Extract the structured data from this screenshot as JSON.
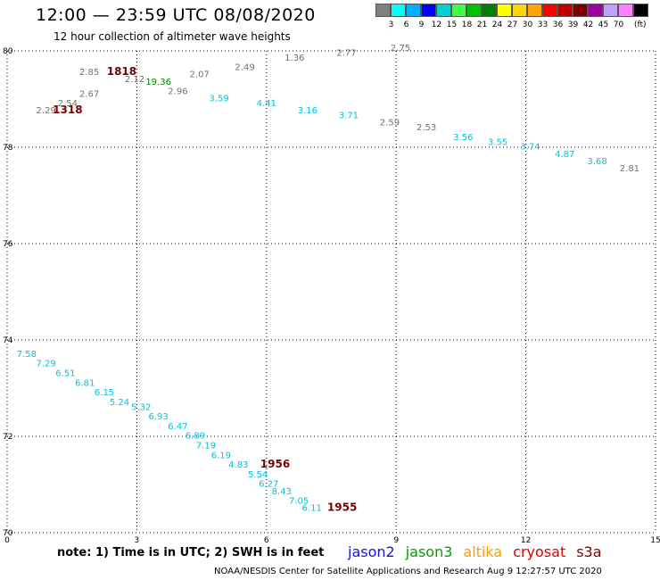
{
  "title": "12:00 — 23:59 UTC 08/08/2020",
  "subtitle": "12 hour collection of altimeter wave heights",
  "note": "note:  1) Time is in UTC;  2) SWH is in feet",
  "credit": "NOAA/NESDIS Center for Satellite Applications and Research    Aug  9 12:27:57 UTC 2020",
  "satellites": [
    {
      "name": "jason2",
      "color": "#1414dc"
    },
    {
      "name": "jason3",
      "color": "#00a000"
    },
    {
      "name": "altika",
      "color": "#ff9900"
    },
    {
      "name": "cryosat",
      "color": "#e00000"
    },
    {
      "name": "s3a",
      "color": "#7a0000"
    }
  ],
  "color_scale": {
    "unit": "(ft)",
    "colors": [
      "#808080",
      "#00ffff",
      "#00b0ff",
      "#0000ff",
      "#00d0d0",
      "#40ff40",
      "#00c000",
      "#008000",
      "#ffff00",
      "#ffd700",
      "#ffa500",
      "#ff0000",
      "#c00000",
      "#800000",
      "#a000a0",
      "#c0a0ff",
      "#ff80ff",
      "#000000"
    ],
    "labels": [
      "3",
      "6",
      "9",
      "12",
      "15",
      "18",
      "21",
      "24",
      "27",
      "30",
      "33",
      "36",
      "39",
      "42",
      "45",
      "70"
    ]
  },
  "chart_data": {
    "type": "scatter",
    "title": "12:00 — 23:59 UTC 08/08/2020",
    "xlim": [
      0,
      15
    ],
    "ylim": [
      70,
      80
    ],
    "x_ticks": [
      "0",
      "3",
      "6",
      "9",
      "12",
      "15"
    ],
    "y_ticks": [
      "70",
      "72",
      "74",
      "76",
      "78",
      "80"
    ],
    "grid": true,
    "points": [
      {
        "x": 0.9,
        "y": 78.7,
        "label": "2.29",
        "color": "#707070",
        "big": false
      },
      {
        "x": 1.4,
        "y": 78.7,
        "label": "1318",
        "color": "#7a0000",
        "big": true
      },
      {
        "x": 1.4,
        "y": 78.85,
        "label": "2.54",
        "color": "#707070",
        "big": false
      },
      {
        "x": 1.9,
        "y": 79.05,
        "label": "2.67",
        "color": "#707070",
        "big": false
      },
      {
        "x": 1.9,
        "y": 79.5,
        "label": "2.85",
        "color": "#707070",
        "big": false
      },
      {
        "x": 2.65,
        "y": 79.5,
        "label": "1818",
        "color": "#7a0000",
        "big": true
      },
      {
        "x": 2.95,
        "y": 79.35,
        "label": "2.12",
        "color": "#707070",
        "big": false
      },
      {
        "x": 3.5,
        "y": 79.3,
        "label": "19.36",
        "color": "#008000",
        "big": false
      },
      {
        "x": 3.95,
        "y": 79.1,
        "label": "2.96",
        "color": "#707070",
        "big": false
      },
      {
        "x": 4.45,
        "y": 79.45,
        "label": "2.07",
        "color": "#707070",
        "big": false
      },
      {
        "x": 4.9,
        "y": 78.95,
        "label": "3.59",
        "color": "#00c0e0",
        "big": false
      },
      {
        "x": 5.5,
        "y": 79.6,
        "label": "2.49",
        "color": "#707070",
        "big": false
      },
      {
        "x": 6.0,
        "y": 78.85,
        "label": "4.41",
        "color": "#00c0e0",
        "big": false
      },
      {
        "x": 6.65,
        "y": 79.8,
        "label": "1.36",
        "color": "#707070",
        "big": false
      },
      {
        "x": 6.95,
        "y": 78.7,
        "label": "3.16",
        "color": "#00c0e0",
        "big": false
      },
      {
        "x": 7.85,
        "y": 79.9,
        "label": "2.77",
        "color": "#707070",
        "big": false
      },
      {
        "x": 7.9,
        "y": 78.6,
        "label": "3.71",
        "color": "#00c0e0",
        "big": false
      },
      {
        "x": 8.85,
        "y": 78.45,
        "label": "2.59",
        "color": "#707070",
        "big": false
      },
      {
        "x": 9.1,
        "y": 80.0,
        "label": "2.75",
        "color": "#707070",
        "big": false
      },
      {
        "x": 9.7,
        "y": 78.35,
        "label": "2.53",
        "color": "#707070",
        "big": false
      },
      {
        "x": 10.55,
        "y": 78.15,
        "label": "3.56",
        "color": "#00c0e0",
        "big": false
      },
      {
        "x": 11.35,
        "y": 78.05,
        "label": "3.55",
        "color": "#00c0e0",
        "big": false
      },
      {
        "x": 12.1,
        "y": 77.95,
        "label": "3.74",
        "color": "#00c0e0",
        "big": false
      },
      {
        "x": 12.9,
        "y": 77.8,
        "label": "4.87",
        "color": "#00c0e0",
        "big": false
      },
      {
        "x": 13.65,
        "y": 77.65,
        "label": "3.68",
        "color": "#00c0e0",
        "big": false
      },
      {
        "x": 14.4,
        "y": 77.5,
        "label": "2.81",
        "color": "#707070",
        "big": false
      },
      {
        "x": 0.45,
        "y": 73.65,
        "label": "7.58",
        "color": "#00c0e0",
        "big": false
      },
      {
        "x": 0.9,
        "y": 73.45,
        "label": "7.29",
        "color": "#00c0e0",
        "big": false
      },
      {
        "x": 1.35,
        "y": 73.25,
        "label": "6.51",
        "color": "#00c0e0",
        "big": false
      },
      {
        "x": 1.8,
        "y": 73.05,
        "label": "6.81",
        "color": "#00c0e0",
        "big": false
      },
      {
        "x": 2.25,
        "y": 72.85,
        "label": "6.15",
        "color": "#00c0e0",
        "big": false
      },
      {
        "x": 2.6,
        "y": 72.65,
        "label": "5.24",
        "color": "#00c0e0",
        "big": false
      },
      {
        "x": 3.1,
        "y": 72.55,
        "label": "5.32",
        "color": "#00c0e0",
        "big": false
      },
      {
        "x": 3.5,
        "y": 72.35,
        "label": "6.93",
        "color": "#00c0e0",
        "big": false
      },
      {
        "x": 3.95,
        "y": 72.15,
        "label": "6.47",
        "color": "#00c0e0",
        "big": false
      },
      {
        "x": 4.35,
        "y": 71.95,
        "label": "6.89",
        "color": "#00c0e0",
        "big": false
      },
      {
        "x": 4.6,
        "y": 71.75,
        "label": "7.19",
        "color": "#00c0e0",
        "big": false
      },
      {
        "x": 4.95,
        "y": 71.55,
        "label": "6.19",
        "color": "#00c0e0",
        "big": false
      },
      {
        "x": 5.35,
        "y": 71.35,
        "label": "4.83",
        "color": "#00c0e0",
        "big": false
      },
      {
        "x": 6.2,
        "y": 71.35,
        "label": "1956",
        "color": "#7a0000",
        "big": true
      },
      {
        "x": 5.8,
        "y": 71.15,
        "label": "5.54",
        "color": "#00c0e0",
        "big": false
      },
      {
        "x": 6.05,
        "y": 70.95,
        "label": "6.27",
        "color": "#00c0e0",
        "big": false
      },
      {
        "x": 6.35,
        "y": 70.8,
        "label": "8.43",
        "color": "#00c0e0",
        "big": false
      },
      {
        "x": 6.75,
        "y": 70.6,
        "label": "7.05",
        "color": "#00c0e0",
        "big": false
      },
      {
        "x": 7.05,
        "y": 70.45,
        "label": "6.11",
        "color": "#00c0e0",
        "big": false
      },
      {
        "x": 7.75,
        "y": 70.45,
        "label": "1955",
        "color": "#7a0000",
        "big": true
      }
    ]
  }
}
